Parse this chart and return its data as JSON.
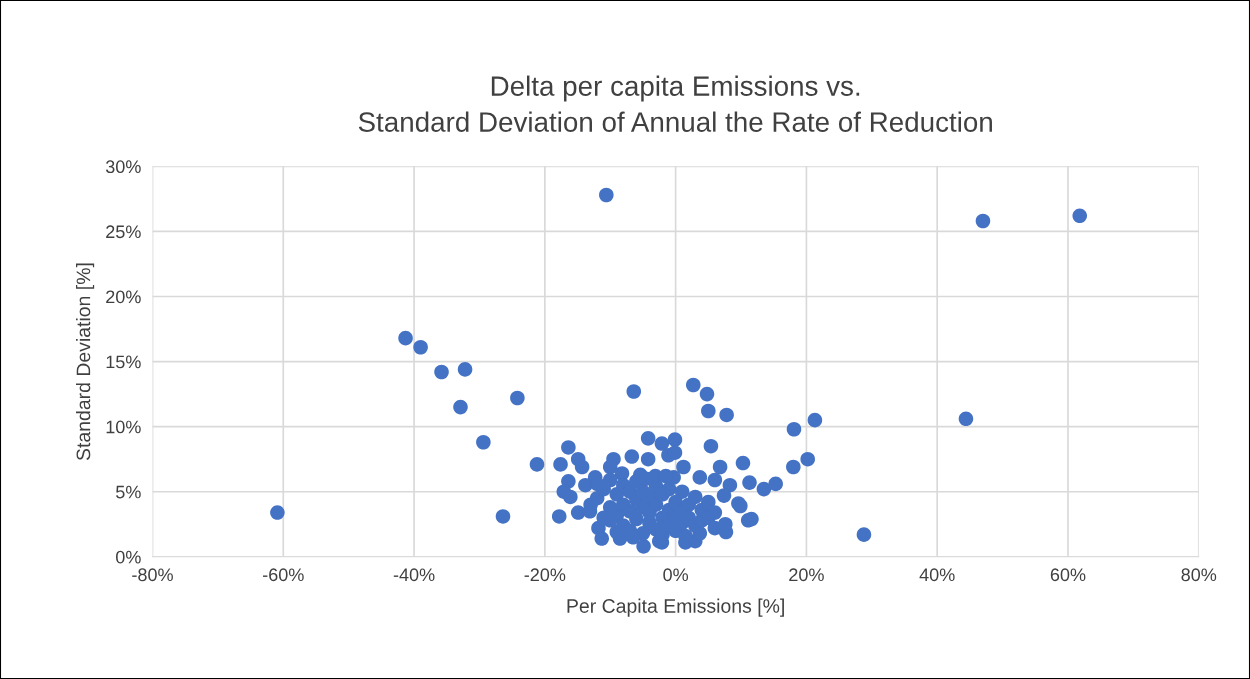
{
  "chart_data": {
    "type": "scatter",
    "title": "Delta per capita Emissions vs.\nStandard Deviation of Annual the Rate of Reduction",
    "xlabel": "Per Capita Emissions [%]",
    "ylabel": "Standard Deviation [%]",
    "series": [
      {
        "color": "#4472c4",
        "x": [
          -60.9,
          -41.3,
          -39.0,
          -35.8,
          -32.2,
          -32.9,
          -29.4,
          -24.2,
          -26.4,
          -21.2,
          -10.6,
          -6.4,
          2.7,
          4.8,
          5.0,
          7.8,
          18.1,
          21.3,
          18.0,
          20.2,
          28.8,
          44.4,
          47.0,
          61.8,
          -4.2,
          -2.1,
          -0.1,
          -1.1,
          -0.1,
          -6.7,
          -4.2,
          -9.5,
          -10.0,
          -16.4,
          -14.9,
          -14.3,
          -17.6,
          1.2,
          5.4,
          6.8,
          10.3,
          11.3,
          13.5,
          15.3,
          8.3,
          6.0,
          3.7,
          -0.3,
          7.4,
          9.6,
          9.9,
          11.1,
          11.6,
          7.7,
          7.6,
          -16.4,
          -17.1,
          -16.1,
          -17.8,
          -14.9,
          -13.1,
          -11.8,
          -11.3,
          -8.5,
          -4.9,
          -2.1,
          1.5,
          3.0,
          3.7,
          -13.8,
          -12.3,
          -8.2,
          -5.4,
          -3.1,
          -12,
          -11,
          -10,
          -10,
          -9,
          -9,
          -8,
          -8,
          -8,
          -7,
          -7,
          -7,
          -6,
          -6,
          -6,
          -5,
          -5,
          -5,
          -4,
          -4,
          -4,
          -3,
          -3,
          -3,
          -2,
          -2,
          -2,
          -1,
          -1,
          -1,
          0,
          0,
          0,
          1,
          1,
          1,
          2,
          2,
          3,
          3,
          4,
          4,
          5,
          5,
          6,
          6,
          -13,
          -11,
          -9,
          -6.5,
          -2.5,
          1.5,
          -12,
          -10,
          -4.5,
          -1.5
        ],
        "values": [
          3.4,
          16.8,
          16.1,
          14.2,
          14.4,
          11.5,
          8.8,
          12.2,
          3.1,
          7.1,
          27.8,
          12.7,
          13.2,
          12.5,
          11.2,
          10.9,
          9.8,
          10.5,
          6.9,
          7.5,
          1.7,
          10.6,
          25.8,
          26.2,
          9.1,
          8.7,
          9.0,
          7.8,
          8.0,
          7.7,
          7.5,
          7.5,
          6.9,
          8.4,
          7.5,
          6.9,
          7.1,
          6.9,
          8.5,
          6.9,
          7.2,
          5.7,
          5.2,
          5.6,
          5.5,
          5.9,
          6.1,
          6.1,
          4.7,
          4.1,
          3.9,
          2.8,
          2.9,
          1.9,
          2.5,
          5.8,
          5.0,
          4.6,
          3.1,
          3.4,
          3.5,
          2.2,
          1.4,
          1.4,
          0.8,
          1.1,
          1.1,
          1.2,
          1.8,
          5.5,
          6.1,
          6.4,
          6.3,
          6.2,
          4.5,
          5.2,
          3.8,
          2.8,
          4.8,
          3.2,
          5.5,
          2.4,
          4.0,
          3.5,
          5.0,
          2.0,
          4.4,
          2.9,
          5.8,
          3.8,
          1.8,
          5.0,
          4.6,
          2.6,
          3.4,
          5.4,
          2.1,
          4.0,
          3.0,
          4.8,
          1.7,
          3.6,
          5.2,
          2.4,
          4.2,
          3.0,
          2.0,
          3.5,
          5.0,
          2.6,
          4.0,
          3.0,
          4.6,
          2.4,
          3.6,
          2.8,
          4.2,
          3.0,
          3.4,
          2.2,
          4.0,
          3.0,
          1.9,
          1.5,
          1.2,
          1.6,
          5.6,
          5.9,
          6.0,
          6.2
        ]
      }
    ],
    "xlim": [
      -80,
      80
    ],
    "ylim": [
      0,
      30
    ],
    "xticks": [
      {
        "value": -80,
        "label": "-80%"
      },
      {
        "value": -60,
        "label": "-60%"
      },
      {
        "value": -40,
        "label": "-40%"
      },
      {
        "value": -20,
        "label": "-20%"
      },
      {
        "value": 0,
        "label": "0%"
      },
      {
        "value": 20,
        "label": "20%"
      },
      {
        "value": 40,
        "label": "40%"
      },
      {
        "value": 60,
        "label": "60%"
      },
      {
        "value": 80,
        "label": "80%"
      }
    ],
    "yticks": [
      {
        "value": 0,
        "label": "0%"
      },
      {
        "value": 5,
        "label": "5%"
      },
      {
        "value": 10,
        "label": "10%"
      },
      {
        "value": 15,
        "label": "15%"
      },
      {
        "value": 20,
        "label": "20%"
      },
      {
        "value": 25,
        "label": "25%"
      },
      {
        "value": 30,
        "label": "30%"
      }
    ],
    "grid": true,
    "marker": "circle"
  }
}
